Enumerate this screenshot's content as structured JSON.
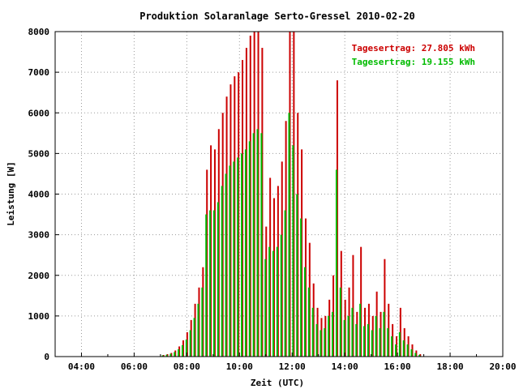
{
  "chart_data": {
    "type": "bar",
    "title": "Produktion Solaranlage Serto-Gressel 2010-02-20",
    "xlabel": "Zeit (UTC)",
    "ylabel": "Leistung [W]",
    "x_unit": "hour (UTC)",
    "xlim": [
      3.0,
      20.0
    ],
    "ylim": [
      0,
      8000
    ],
    "xticks": [
      "04:00",
      "06:00",
      "08:00",
      "10:00",
      "12:00",
      "14:00",
      "16:00",
      "18:00",
      "20:00"
    ],
    "yticks": [
      "0",
      "1000",
      "2000",
      "3000",
      "4000",
      "5000",
      "6000",
      "7000",
      "8000"
    ],
    "grid": true,
    "legend_position": "top-right",
    "legend": [
      {
        "text": "Tagesertrag: 27.805 kWh",
        "color": "#cc0000"
      },
      {
        "text": "Tagesertrag: 19.155 kWh",
        "color": "#00bb00"
      }
    ],
    "series": [
      {
        "color": "#cc0000",
        "x": [
          7.1,
          7.25,
          7.4,
          7.55,
          7.7,
          7.85,
          8.0,
          8.15,
          8.3,
          8.45,
          8.6,
          8.75,
          8.9,
          9.05,
          9.2,
          9.35,
          9.5,
          9.65,
          9.8,
          9.95,
          10.1,
          10.25,
          10.4,
          10.55,
          10.7,
          10.85,
          11.0,
          11.15,
          11.3,
          11.45,
          11.6,
          11.75,
          11.9,
          12.05,
          12.2,
          12.35,
          12.5,
          12.65,
          12.8,
          12.95,
          13.1,
          13.25,
          13.4,
          13.55,
          13.7,
          13.85,
          14.0,
          14.15,
          14.3,
          14.45,
          14.6,
          14.75,
          14.9,
          15.05,
          15.2,
          15.35,
          15.5,
          15.65,
          15.8,
          15.95,
          16.1,
          16.25,
          16.4,
          16.55,
          16.7,
          16.85
        ],
        "values": [
          40,
          60,
          90,
          150,
          250,
          400,
          600,
          900,
          1300,
          1700,
          2200,
          4600,
          5200,
          5100,
          5600,
          6000,
          6400,
          6700,
          6900,
          7000,
          7300,
          7600,
          7900,
          8000,
          8000,
          7600,
          3200,
          4400,
          3900,
          4200,
          4800,
          5800,
          8000,
          8000,
          6000,
          5100,
          3400,
          2800,
          1800,
          1200,
          950,
          1000,
          1400,
          2000,
          6800,
          2600,
          1400,
          1700,
          2500,
          1100,
          2700,
          1200,
          1300,
          1000,
          1600,
          1100,
          2400,
          1300,
          800,
          500,
          1200,
          700,
          500,
          300,
          150,
          60
        ]
      },
      {
        "color": "#00bb00",
        "x": [
          7.1,
          7.25,
          7.4,
          7.55,
          7.7,
          7.85,
          8.0,
          8.15,
          8.3,
          8.45,
          8.6,
          8.75,
          8.9,
          9.05,
          9.2,
          9.35,
          9.5,
          9.65,
          9.8,
          9.95,
          10.1,
          10.25,
          10.4,
          10.55,
          10.7,
          10.85,
          11.0,
          11.15,
          11.3,
          11.45,
          11.6,
          11.75,
          11.9,
          12.05,
          12.2,
          12.35,
          12.5,
          12.65,
          12.8,
          12.95,
          13.1,
          13.25,
          13.4,
          13.55,
          13.7,
          13.85,
          14.0,
          14.15,
          14.3,
          14.45,
          14.6,
          14.75,
          14.9,
          15.05,
          15.2,
          15.35,
          15.5,
          15.65,
          15.8,
          15.95,
          16.1,
          16.25,
          16.4,
          16.55,
          16.7,
          16.85
        ],
        "values": [
          30,
          45,
          70,
          110,
          180,
          280,
          420,
          650,
          950,
          1300,
          1700,
          3500,
          3600,
          3600,
          3800,
          4200,
          4500,
          4700,
          4800,
          4900,
          5000,
          5100,
          5300,
          5500,
          5600,
          5500,
          2400,
          2700,
          2600,
          2700,
          3000,
          3600,
          6000,
          5200,
          4000,
          3400,
          2200,
          1700,
          1200,
          800,
          650,
          700,
          1000,
          1100,
          4600,
          1700,
          900,
          1000,
          1200,
          800,
          1300,
          750,
          800,
          650,
          1000,
          700,
          1100,
          700,
          500,
          300,
          600,
          400,
          300,
          180,
          90,
          40
        ]
      }
    ]
  }
}
